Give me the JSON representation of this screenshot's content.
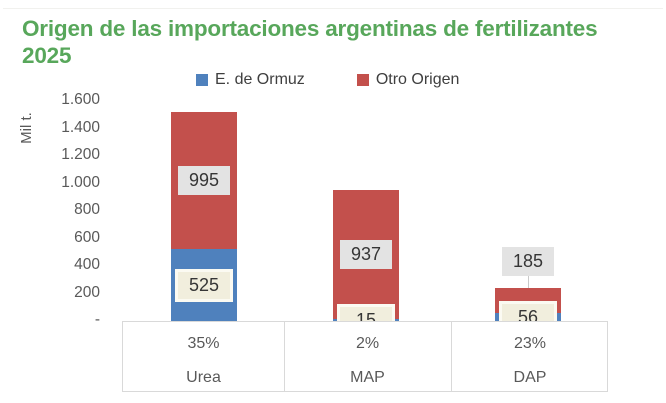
{
  "title": {
    "text": "Origen de las importaciones argentinas de fertilizantes 2025"
  },
  "colors": {
    "title_green": "#58a75b",
    "series_blue": "#4f81bd",
    "series_red": "#c3504c",
    "label_gray_bg": "#e3e3e3",
    "label_cream_bg": "#f1eedd",
    "label_cream_border": "#fbfaf2",
    "border_gray": "#d9d9d9",
    "axis_text": "#595959"
  },
  "legend": {
    "items": [
      {
        "label": "E. de Ormuz",
        "color": "#4f81bd"
      },
      {
        "label": "Otro Origen",
        "color": "#c3504c"
      }
    ]
  },
  "y_axis": {
    "title": "Mil t.",
    "tick_labels": [
      "1.600",
      "1.400",
      "1.200",
      "1.000",
      "800",
      "600",
      "400",
      "200",
      "-"
    ]
  },
  "chart_data": {
    "type": "bar",
    "stacked": true,
    "title": "Origen de las importaciones argentinas de fertilizantes 2025",
    "ylabel": "Mil t.",
    "ylim": [
      0,
      1600
    ],
    "grid": false,
    "legend_position": "top",
    "categories": [
      "Urea",
      "MAP",
      "DAP"
    ],
    "series": [
      {
        "name": "E. de Ormuz",
        "values": [
          525,
          15,
          56
        ]
      },
      {
        "name": "Otro Origen",
        "values": [
          995,
          937,
          185
        ]
      }
    ],
    "category_share_labels": [
      "35%",
      "2%",
      "23%"
    ]
  }
}
